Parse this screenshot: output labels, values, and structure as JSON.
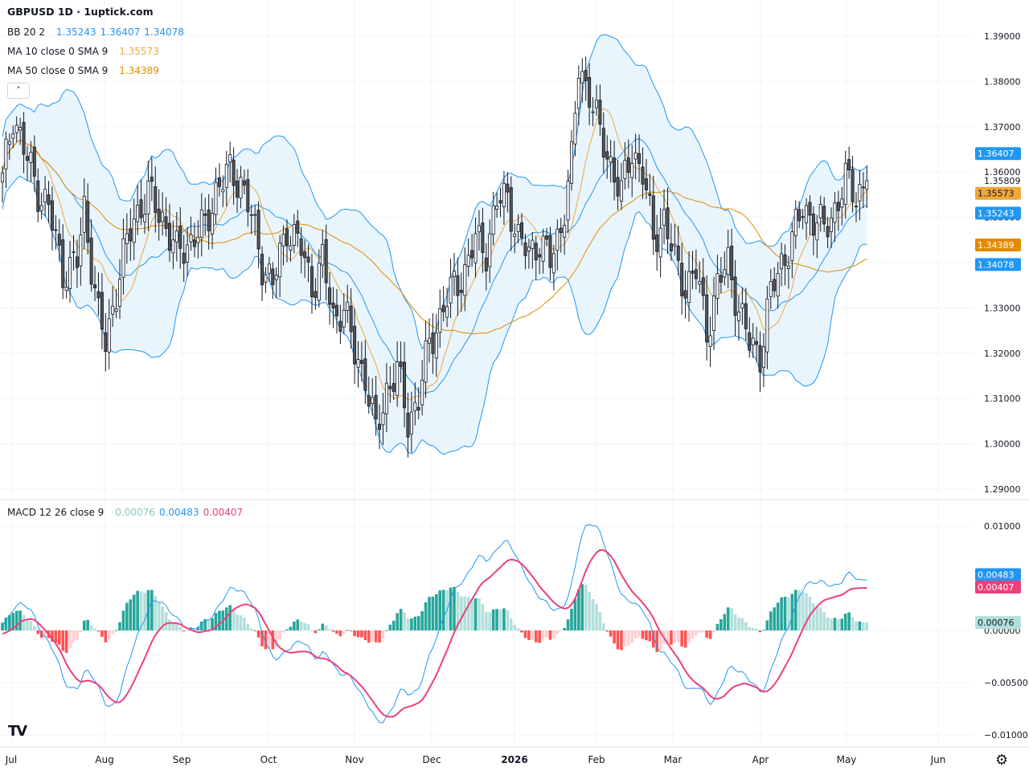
{
  "header": {
    "title": "GBPUSD 1D · 1uptick.com"
  },
  "colors": {
    "bb": "#2196f3",
    "ma10": "#f0a73a",
    "ma50": "#e38a00",
    "macd": "#2196f3",
    "signal": "#ec407a",
    "hist_pos_strong": "#26a69a",
    "hist_pos_weak": "#b2dfdb",
    "hist_neg_strong": "#ff5252",
    "hist_neg_weak": "#ffcdd2",
    "candle_up": "#ffffff",
    "candle_down": "#555555",
    "band_fill": "#e3f2fd"
  },
  "legend": {
    "bb": {
      "label": "BB 20 2",
      "v1": "1.35243",
      "v2": "1.36407",
      "v3": "1.34078"
    },
    "ma10": {
      "label": "MA 10 close 0 SMA 9",
      "v": "1.35573"
    },
    "ma50": {
      "label": "MA 50 close 0 SMA 9",
      "v": "1.34389"
    },
    "macd": {
      "label": "MACD 12 26 close 9",
      "v1": "0.00076",
      "v2": "0.00483",
      "v3": "0.00407"
    }
  },
  "badges": {
    "bb_upper": "1.36407",
    "last_price": "1.35809",
    "ma10": "1.35573",
    "bb_mid": "1.35243",
    "ma50": "1.34389",
    "bb_lower": "1.34078",
    "macd": "0.00483",
    "signal": "0.00407",
    "hist": "0.00076"
  },
  "icons": {
    "collapse": "chevron-up-icon",
    "logo": "tradingview-logo",
    "settings": "gear-icon"
  },
  "chart_data": [
    {
      "type": "candlestick",
      "symbol": "GBPUSD",
      "interval": "1D",
      "ylim": [
        1.285,
        1.393
      ],
      "y_ticks": [
        "1.29000",
        "1.30000",
        "1.31000",
        "1.32000",
        "1.33000",
        "1.34000",
        "1.35000",
        "1.36000",
        "1.37000",
        "1.38000",
        "1.39000"
      ],
      "x_ticks": [
        "Jul",
        "Aug",
        "Sep",
        "Oct",
        "Nov",
        "Dec",
        "2026",
        "Feb",
        "Mar",
        "Apr",
        "May",
        "Jun"
      ],
      "close_anchors": [
        [
          0,
          1.358
        ],
        [
          3,
          1.373
        ],
        [
          6,
          1.365
        ],
        [
          10,
          1.356
        ],
        [
          13,
          1.352
        ],
        [
          17,
          1.338
        ],
        [
          21,
          1.34
        ],
        [
          23,
          1.352
        ],
        [
          27,
          1.328
        ],
        [
          29,
          1.322
        ],
        [
          33,
          1.338
        ],
        [
          37,
          1.35
        ],
        [
          41,
          1.355
        ],
        [
          45,
          1.35
        ],
        [
          49,
          1.342
        ],
        [
          53,
          1.345
        ],
        [
          57,
          1.348
        ],
        [
          60,
          1.356
        ],
        [
          64,
          1.36
        ],
        [
          67,
          1.358
        ],
        [
          70,
          1.35
        ],
        [
          73,
          1.34
        ],
        [
          76,
          1.335
        ],
        [
          80,
          1.348
        ],
        [
          84,
          1.343
        ],
        [
          87,
          1.335
        ],
        [
          90,
          1.34
        ],
        [
          93,
          1.328
        ],
        [
          96,
          1.33
        ],
        [
          99,
          1.32
        ],
        [
          102,
          1.315
        ],
        [
          105,
          1.302
        ],
        [
          108,
          1.312
        ],
        [
          111,
          1.316
        ],
        [
          114,
          1.305
        ],
        [
          117,
          1.31
        ],
        [
          120,
          1.322
        ],
        [
          124,
          1.33
        ],
        [
          127,
          1.335
        ],
        [
          130,
          1.338
        ],
        [
          133,
          1.345
        ],
        [
          136,
          1.343
        ],
        [
          139,
          1.353
        ],
        [
          142,
          1.355
        ],
        [
          145,
          1.345
        ],
        [
          148,
          1.342
        ],
        [
          151,
          1.345
        ],
        [
          154,
          1.34
        ],
        [
          157,
          1.348
        ],
        [
          160,
          1.362
        ],
        [
          162,
          1.383
        ],
        [
          165,
          1.378
        ],
        [
          168,
          1.368
        ],
        [
          171,
          1.362
        ],
        [
          174,
          1.355
        ],
        [
          177,
          1.365
        ],
        [
          180,
          1.36
        ],
        [
          183,
          1.345
        ],
        [
          186,
          1.35
        ],
        [
          189,
          1.34
        ],
        [
          192,
          1.335
        ],
        [
          195,
          1.338
        ],
        [
          198,
          1.325
        ],
        [
          201,
          1.335
        ],
        [
          204,
          1.34
        ],
        [
          207,
          1.33
        ],
        [
          210,
          1.322
        ],
        [
          213,
          1.32
        ],
        [
          216,
          1.333
        ],
        [
          219,
          1.34
        ],
        [
          222,
          1.345
        ],
        [
          225,
          1.352
        ],
        [
          228,
          1.35
        ],
        [
          231,
          1.347
        ],
        [
          234,
          1.352
        ],
        [
          237,
          1.358
        ],
        [
          240,
          1.355
        ],
        [
          243,
          1.358
        ]
      ],
      "last_close": 1.35809,
      "overlays": [
        {
          "name": "BB 20 2",
          "values": [
            1.35243,
            1.36407,
            1.34078
          ]
        },
        {
          "name": "MA 10 close 0 SMA 9",
          "value": 1.35573
        },
        {
          "name": "MA 50 close 0 SMA 9",
          "value": 1.34389
        }
      ]
    },
    {
      "type": "line+bar",
      "name": "MACD 12 26 close 9",
      "ylim": [
        -0.0104,
        0.0114
      ],
      "y_ticks": [
        "0.01000",
        "0.00000",
        "−0.00500",
        "−0.01000"
      ],
      "last": {
        "hist": 0.00076,
        "macd": 0.00483,
        "signal": 0.00407
      }
    }
  ]
}
